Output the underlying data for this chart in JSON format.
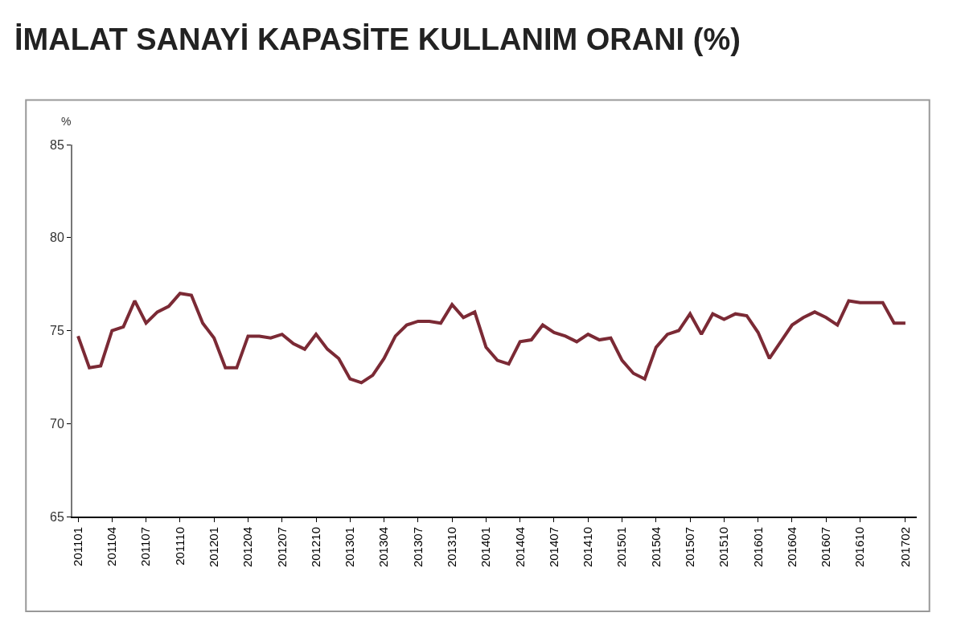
{
  "chart_data": {
    "type": "line",
    "title": "İMALAT SANAYİ KAPASİTE KULLANIM ORANI (%)",
    "ylabel": "%",
    "categories": [
      "201101",
      null,
      null,
      "201104",
      null,
      null,
      "201107",
      null,
      null,
      "201110",
      null,
      null,
      "201201",
      null,
      null,
      "201204",
      null,
      null,
      "201207",
      null,
      null,
      "201210",
      null,
      null,
      "201301",
      null,
      null,
      "201304",
      null,
      null,
      "201307",
      null,
      null,
      "201310",
      null,
      null,
      "201401",
      null,
      null,
      "201404",
      null,
      null,
      "201407",
      null,
      null,
      "201410",
      null,
      null,
      "201501",
      null,
      null,
      "201504",
      null,
      null,
      "201507",
      null,
      null,
      "201510",
      null,
      null,
      "201601",
      null,
      null,
      "201604",
      null,
      null,
      "201607",
      null,
      null,
      "201610",
      null,
      null,
      null,
      "201702"
    ],
    "series": [
      {
        "color": "#7b2a35",
        "values": [
          74.7,
          73.0,
          73.1,
          75.0,
          75.2,
          76.6,
          75.4,
          76.0,
          76.3,
          77.0,
          76.9,
          75.4,
          74.6,
          73.0,
          73.0,
          74.7,
          74.7,
          74.6,
          74.8,
          74.3,
          74.0,
          74.8,
          74.0,
          73.5,
          72.4,
          72.2,
          72.6,
          73.5,
          74.7,
          75.3,
          75.5,
          75.5,
          75.4,
          76.4,
          75.7,
          76.0,
          74.1,
          73.4,
          73.2,
          74.4,
          74.5,
          75.3,
          74.9,
          74.7,
          74.4,
          74.8,
          74.5,
          74.6,
          73.4,
          72.7,
          72.4,
          74.1,
          74.8,
          75.0,
          75.9,
          74.8,
          75.9,
          75.6,
          75.9,
          75.8,
          74.9,
          73.5,
          74.4,
          75.3,
          75.7,
          76.0,
          75.7,
          75.3,
          76.6,
          76.5,
          76.5,
          76.5,
          75.4,
          75.4
        ]
      }
    ],
    "ylim": [
      65,
      85
    ],
    "yticks": [
      65,
      70,
      75,
      80,
      85
    ],
    "marker": "none",
    "line_style": "solid"
  }
}
